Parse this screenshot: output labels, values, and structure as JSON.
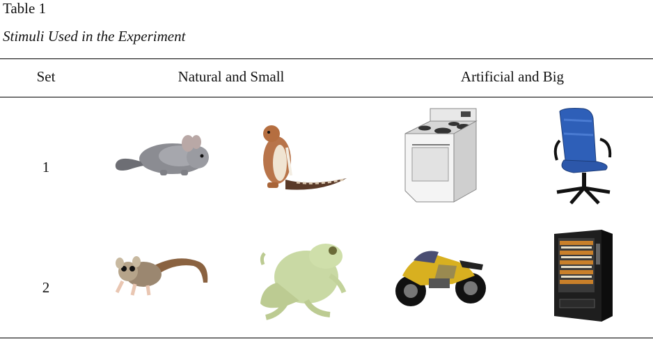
{
  "table": {
    "number": "Table 1",
    "title": "Stimuli Used in the Experiment",
    "headers": [
      "Set",
      "Natural and Small",
      "Artificial and Big"
    ],
    "rows": [
      {
        "set": "1",
        "stimuli": [
          "chinchilla-image",
          "chipmunk-image",
          "stove-image",
          "office-chair-image"
        ]
      },
      {
        "set": "2",
        "stimuli": [
          "sugar-glider-image",
          "frog-image",
          "motorcycle-image",
          "vending-machine-image"
        ]
      }
    ]
  },
  "colors": {
    "rule": "#000000",
    "chair_blue": "#2e5fb8",
    "frog_green": "#c9d9a4",
    "moto_yellow": "#d8b020"
  }
}
